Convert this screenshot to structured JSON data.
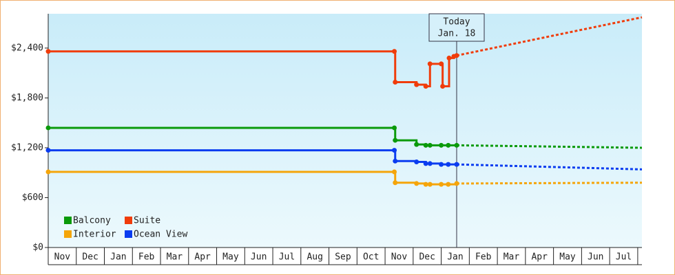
{
  "chart_data": {
    "type": "step-line",
    "categories": [
      "Nov",
      "Dec",
      "Jan",
      "Feb",
      "Mar",
      "Apr",
      "May",
      "Jun",
      "Jul",
      "Aug",
      "Sep",
      "Oct",
      "Nov",
      "Dec",
      "Jan",
      "Feb",
      "Mar",
      "Apr",
      "May",
      "Jun",
      "Jul"
    ],
    "xlim": [
      0,
      21.15
    ],
    "ylim": [
      0,
      2813
    ],
    "yticks": [
      {
        "value": 0,
        "label": "$0"
      },
      {
        "value": 600,
        "label": "$600"
      },
      {
        "value": 1200,
        "label": "$1,200"
      },
      {
        "value": 1800,
        "label": "$1,800"
      },
      {
        "value": 2400,
        "label": "$2,400"
      }
    ],
    "grid": false,
    "series": [
      {
        "name": "Balcony",
        "color": "#0a9a0a",
        "x": [
          0,
          12.33,
          12.36,
          13.12,
          13.45,
          13.6,
          14.0,
          14.25,
          14.55
        ],
        "values": [
          1440,
          1440,
          1290,
          1240,
          1230,
          1230,
          1230,
          1230,
          1230
        ],
        "forecast": {
          "x": [
            14.55,
            21.15
          ],
          "values": [
            1230,
            1200
          ]
        }
      },
      {
        "name": "Suite",
        "color": "#f03c0a",
        "x": [
          0,
          12.33,
          12.36,
          13.12,
          13.45,
          13.6,
          14.0,
          14.05,
          14.28,
          14.45,
          14.55
        ],
        "values": [
          2360,
          2360,
          1990,
          1960,
          1940,
          2210,
          2210,
          1940,
          2280,
          2300,
          2310
        ],
        "forecast": {
          "x": [
            14.55,
            21.15
          ],
          "values": [
            2310,
            2770
          ]
        }
      },
      {
        "name": "Interior",
        "color": "#f5a50a",
        "x": [
          0,
          12.33,
          12.36,
          13.12,
          13.45,
          13.6,
          14.0,
          14.25,
          14.55
        ],
        "values": [
          910,
          910,
          780,
          770,
          760,
          760,
          760,
          760,
          770
        ],
        "forecast": {
          "x": [
            14.55,
            21.15
          ],
          "values": [
            770,
            780
          ]
        }
      },
      {
        "name": "Ocean View",
        "color": "#0a3cf0",
        "x": [
          0,
          12.33,
          12.36,
          13.12,
          13.45,
          13.6,
          14.0,
          14.25,
          14.55
        ],
        "values": [
          1170,
          1170,
          1040,
          1030,
          1010,
          1010,
          1000,
          1000,
          1000
        ],
        "forecast": {
          "x": [
            14.55,
            21.15
          ],
          "values": [
            1000,
            940
          ]
        }
      }
    ],
    "today": {
      "x": 14.55,
      "lines": [
        "Today",
        "Jan. 18"
      ]
    }
  }
}
